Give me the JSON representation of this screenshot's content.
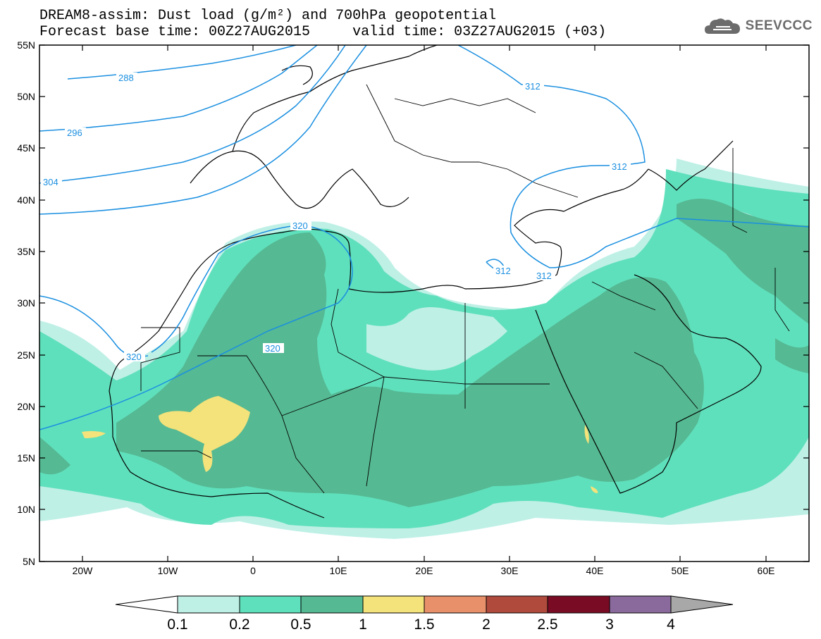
{
  "header": {
    "line1": "DREAM8-assim: Dust load (g/m²) and 700hPa geopotential",
    "line2": "Forecast base time: 00Z27AUG2015     valid time: 03Z27AUG2015 (+03)"
  },
  "logo": {
    "text": "SEEVCCC",
    "icon": "cloud-icon"
  },
  "map": {
    "lat_labels": [
      "55N",
      "50N",
      "45N",
      "40N",
      "35N",
      "30N",
      "25N",
      "20N",
      "15N",
      "10N",
      "5N"
    ],
    "lon_labels": [
      "20W",
      "10W",
      "0",
      "10E",
      "20E",
      "30E",
      "40E",
      "50E",
      "60E"
    ],
    "geopotential_labels": [
      "288",
      "296",
      "304",
      "320",
      "320",
      "320",
      "312",
      "312",
      "312",
      "312"
    ],
    "colors": {
      "level_01": "#bff0e6",
      "level_02": "#5fe0bc",
      "level_05": "#55b993",
      "level_1": "#f4e27a",
      "contour": "#1a8fe0",
      "coast": "#000000"
    }
  },
  "colorbar": {
    "labels": [
      "0.1",
      "0.2",
      "0.5",
      "1",
      "1.5",
      "2",
      "2.5",
      "3",
      "4"
    ],
    "colors": [
      "#ffffff",
      "#bff0e6",
      "#5fe0bc",
      "#55b993",
      "#f4e27a",
      "#e8906a",
      "#b04a3c",
      "#7a0b24",
      "#8a6a9c",
      "#a8a8a8"
    ]
  }
}
